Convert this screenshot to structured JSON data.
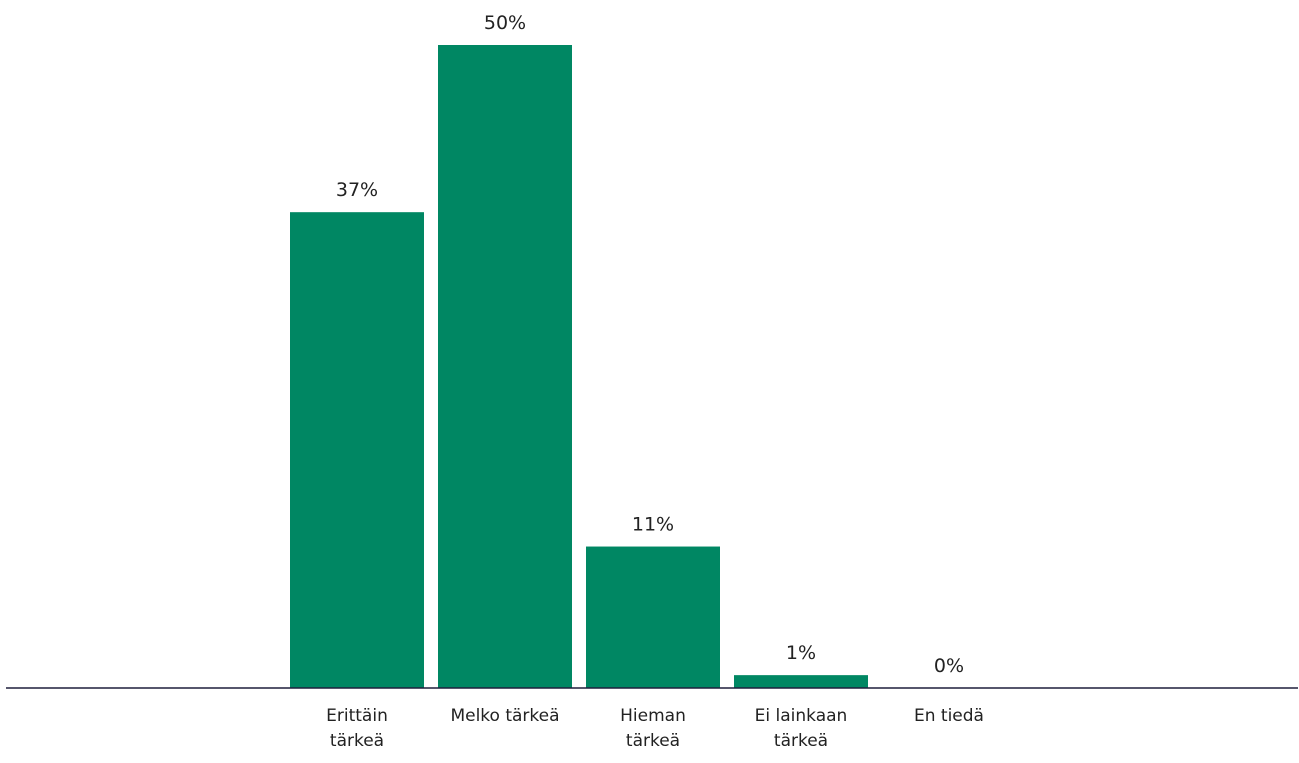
{
  "chart_data": {
    "type": "bar",
    "categories": [
      "Erittäin tärkeä",
      "Melko tärkeä",
      "Hieman tärkeä",
      "Ei lainkaan tärkeä",
      "En tiedä"
    ],
    "values": [
      37,
      50,
      11,
      1,
      0
    ],
    "value_labels": [
      "37%",
      "50%",
      "11%",
      "1%",
      "0%"
    ],
    "color": "#008763"
  }
}
